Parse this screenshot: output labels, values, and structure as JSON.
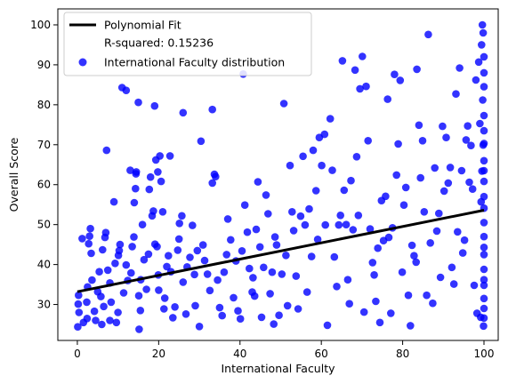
{
  "chart_data": {
    "type": "scatter",
    "xlabel": "International Faculty",
    "ylabel": "Overall Score",
    "xlim": [
      -4.8,
      103.5
    ],
    "ylim": [
      21,
      104
    ],
    "x_ticks": [
      0,
      20,
      40,
      60,
      80,
      100
    ],
    "y_ticks": [
      30,
      40,
      50,
      60,
      70,
      80,
      90,
      100
    ],
    "grid": false,
    "legend": {
      "placement": "top-left",
      "entries": [
        "Polynomial Fit",
        "R-squared: 0.15236",
        "International Faculty distribution"
      ]
    },
    "fit": {
      "name": "Polynomial Fit",
      "x": [
        0,
        100
      ],
      "y": [
        33.2,
        53.6
      ],
      "color": "#000000"
    },
    "series": [
      {
        "name": "International Faculty distribution",
        "color": "#0000ff",
        "points": [
          [
            0.1,
            24.4
          ],
          [
            0.4,
            28.0
          ],
          [
            0.2,
            30.1
          ],
          [
            0.3,
            32.3
          ],
          [
            2.4,
            26.5
          ],
          [
            1.5,
            25.5
          ],
          [
            1.2,
            46.5
          ],
          [
            2.8,
            45.2
          ],
          [
            3.0,
            47.1
          ],
          [
            3.2,
            49.0
          ],
          [
            3.4,
            42.8
          ],
          [
            3.6,
            36.1
          ],
          [
            2.5,
            34.4
          ],
          [
            2.3,
            30.6
          ],
          [
            4.2,
            28.3
          ],
          [
            4.5,
            26.0
          ],
          [
            5.0,
            33.2
          ],
          [
            5.4,
            38.2
          ],
          [
            5.8,
            32.0
          ],
          [
            6.0,
            25.0
          ],
          [
            6.5,
            29.5
          ],
          [
            6.2,
            43.7
          ],
          [
            6.8,
            46.8
          ],
          [
            7.0,
            48.0
          ],
          [
            7.2,
            68.6
          ],
          [
            7.5,
            38.6
          ],
          [
            8.0,
            35.4
          ],
          [
            8.3,
            30.6
          ],
          [
            8.0,
            26.0
          ],
          [
            9.0,
            55.7
          ],
          [
            9.3,
            40.3
          ],
          [
            9.6,
            25.5
          ],
          [
            10.0,
            28.0
          ],
          [
            10.5,
            45.0
          ],
          [
            10.3,
            43.5
          ],
          [
            10.1,
            42.3
          ],
          [
            11.0,
            84.3
          ],
          [
            11.4,
            32.9
          ],
          [
            12.0,
            39.9
          ],
          [
            12.4,
            36.0
          ],
          [
            12.0,
            83.6
          ],
          [
            13.0,
            63.6
          ],
          [
            13.2,
            37.9
          ],
          [
            13.5,
            44.5
          ],
          [
            13.9,
            46.9
          ],
          [
            14.0,
            55.5
          ],
          [
            14.3,
            59.0
          ],
          [
            14.4,
            62.7
          ],
          [
            14.5,
            63.2
          ],
          [
            15.0,
            80.6
          ],
          [
            15.1,
            32.2
          ],
          [
            15.6,
            36.2
          ],
          [
            15.5,
            28.5
          ],
          [
            15.2,
            23.8
          ],
          [
            16.0,
            50.0
          ],
          [
            16.4,
            41.2
          ],
          [
            17.0,
            33.8
          ],
          [
            17.5,
            42.6
          ],
          [
            17.7,
            58.8
          ],
          [
            18.0,
            61.9
          ],
          [
            18.4,
            52.2
          ],
          [
            18.7,
            53.4
          ],
          [
            19.0,
            79.7
          ],
          [
            19.3,
            66.2
          ],
          [
            19.8,
            63.2
          ],
          [
            19.1,
            45.1
          ],
          [
            19.6,
            44.5
          ],
          [
            19.9,
            37.4
          ],
          [
            20.0,
            33.6
          ],
          [
            20.3,
            67.2
          ],
          [
            20.6,
            60.8
          ],
          [
            21.0,
            53.2
          ],
          [
            21.5,
            31.6
          ],
          [
            21.3,
            28.9
          ],
          [
            22.0,
            39.5
          ],
          [
            22.4,
            42.2
          ],
          [
            22.8,
            67.2
          ],
          [
            23.0,
            38.2
          ],
          [
            23.5,
            26.7
          ],
          [
            24.0,
            29.4
          ],
          [
            24.7,
            43.6
          ],
          [
            25.0,
            46.4
          ],
          [
            25.1,
            50.3
          ],
          [
            25.7,
            52.2
          ],
          [
            26.0,
            78.0
          ],
          [
            26.0,
            35.6
          ],
          [
            26.7,
            27.6
          ],
          [
            27.0,
            39.4
          ],
          [
            27.7,
            41.8
          ],
          [
            28.3,
            49.8
          ],
          [
            28.8,
            37.5
          ],
          [
            29.0,
            29.7
          ],
          [
            29.5,
            43.5
          ],
          [
            30.0,
            24.5
          ],
          [
            30.4,
            70.9
          ],
          [
            30.9,
            44.9
          ],
          [
            31.3,
            41.0
          ],
          [
            32.0,
            37.6
          ],
          [
            32.6,
            33.5
          ],
          [
            33.2,
            60.4
          ],
          [
            33.7,
            62.6
          ],
          [
            33.2,
            78.8
          ],
          [
            34.0,
            62.0
          ],
          [
            34.5,
            36.1
          ],
          [
            35.0,
            29.2
          ],
          [
            35.6,
            27.2
          ],
          [
            36.1,
            38.1
          ],
          [
            36.7,
            42.5
          ],
          [
            37.0,
            51.4
          ],
          [
            37.7,
            46.2
          ],
          [
            38.4,
            31.7
          ],
          [
            39.0,
            40.9
          ],
          [
            39.5,
            28.4
          ],
          [
            40.1,
            26.4
          ],
          [
            40.5,
            43.4
          ],
          [
            40.8,
            87.7
          ],
          [
            41.2,
            54.9
          ],
          [
            41.8,
            48.1
          ],
          [
            42.3,
            39.0
          ],
          [
            43.0,
            33.1
          ],
          [
            43.2,
            36.7
          ],
          [
            43.6,
            32.1
          ],
          [
            44.0,
            48.8
          ],
          [
            44.4,
            60.7
          ],
          [
            44.9,
            44.4
          ],
          [
            45.3,
            26.8
          ],
          [
            45.8,
            39.3
          ],
          [
            46.4,
            57.4
          ],
          [
            46.9,
            52.7
          ],
          [
            47.4,
            32.7
          ],
          [
            47.9,
            38.1
          ],
          [
            48.3,
            25.1
          ],
          [
            48.6,
            46.9
          ],
          [
            49.0,
            44.9
          ],
          [
            49.6,
            27.3
          ],
          [
            50.3,
            37.6
          ],
          [
            50.8,
            80.3
          ],
          [
            51.3,
            42.3
          ],
          [
            51.7,
            29.7
          ],
          [
            52.3,
            64.8
          ],
          [
            52.8,
            53.2
          ],
          [
            53.2,
            48.5
          ],
          [
            53.8,
            37.1
          ],
          [
            54.3,
            28.9
          ],
          [
            54.9,
            52.1
          ],
          [
            55.5,
            67.1
          ],
          [
            56.0,
            49.9
          ],
          [
            56.5,
            33.1
          ],
          [
            57.0,
            53.9
          ],
          [
            57.6,
            42.0
          ],
          [
            58.0,
            68.6
          ],
          [
            58.7,
            58.5
          ],
          [
            59.1,
            46.3
          ],
          [
            59.5,
            71.8
          ],
          [
            60.1,
            64.8
          ],
          [
            60.8,
            72.6
          ],
          [
            61.0,
            49.9
          ],
          [
            61.5,
            24.8
          ],
          [
            62.2,
            76.5
          ],
          [
            62.7,
            63.6
          ],
          [
            63.2,
            41.9
          ],
          [
            63.8,
            34.5
          ],
          [
            64.3,
            49.9
          ],
          [
            64.7,
            52.3
          ],
          [
            65.2,
            91.0
          ],
          [
            65.6,
            58.6
          ],
          [
            66.1,
            50.0
          ],
          [
            66.5,
            36.2
          ],
          [
            66.9,
            30.2
          ],
          [
            67.3,
            61.0
          ],
          [
            67.8,
            48.7
          ],
          [
            68.3,
            88.7
          ],
          [
            68.7,
            67.0
          ],
          [
            69.1,
            52.3
          ],
          [
            69.5,
            84.0
          ],
          [
            70.1,
            92.1
          ],
          [
            70.5,
            28.1
          ],
          [
            71.0,
            84.6
          ],
          [
            71.5,
            71.0
          ],
          [
            72.0,
            48.9
          ],
          [
            72.6,
            40.5
          ],
          [
            73.0,
            37.4
          ],
          [
            73.4,
            30.8
          ],
          [
            73.9,
            44.1
          ],
          [
            74.4,
            25.5
          ],
          [
            74.8,
            56.0
          ],
          [
            75.3,
            46.0
          ],
          [
            75.8,
            57.1
          ],
          [
            76.3,
            81.4
          ],
          [
            76.6,
            46.8
          ],
          [
            77.1,
            27.8
          ],
          [
            77.5,
            49.2
          ],
          [
            78.0,
            87.6
          ],
          [
            78.5,
            62.4
          ],
          [
            78.9,
            70.2
          ],
          [
            79.4,
            86.1
          ],
          [
            79.9,
            38.1
          ],
          [
            80.3,
            54.9
          ],
          [
            80.8,
            59.3
          ],
          [
            81.4,
            32.3
          ],
          [
            81.9,
            24.7
          ],
          [
            82.3,
            44.8
          ],
          [
            82.8,
            42.2
          ],
          [
            83.3,
            40.6
          ],
          [
            83.5,
            88.9
          ],
          [
            84.0,
            74.9
          ],
          [
            84.4,
            61.7
          ],
          [
            84.9,
            71.0
          ],
          [
            85.3,
            53.2
          ],
          [
            85.9,
            32.3
          ],
          [
            86.3,
            97.6
          ],
          [
            86.8,
            45.4
          ],
          [
            87.4,
            30.3
          ],
          [
            87.9,
            64.2
          ],
          [
            88.4,
            48.4
          ],
          [
            88.9,
            52.8
          ],
          [
            89.3,
            36.8
          ],
          [
            89.8,
            74.6
          ],
          [
            90.2,
            58.4
          ],
          [
            90.7,
            71.8
          ],
          [
            91.2,
            60.4
          ],
          [
            91.7,
            64.3
          ],
          [
            92.1,
            39.3
          ],
          [
            92.6,
            35.1
          ],
          [
            93.1,
            82.7
          ],
          [
            93.5,
            48.2
          ],
          [
            94.0,
            89.2
          ],
          [
            94.5,
            63.5
          ],
          [
            94.8,
            42.9
          ],
          [
            95.2,
            46.1
          ],
          [
            95.6,
            71.2
          ],
          [
            96.0,
            74.7
          ],
          [
            96.4,
            60.6
          ],
          [
            96.8,
            69.8
          ],
          [
            97.2,
            58.9
          ],
          [
            97.6,
            34.8
          ],
          [
            98.0,
            86.2
          ],
          [
            98.3,
            27.8
          ],
          [
            98.7,
            90.7
          ],
          [
            99.0,
            75.3
          ],
          [
            99.2,
            26.8
          ],
          [
            99.4,
            95.0
          ],
          [
            99.6,
            100.0
          ],
          [
            99.8,
            98.0
          ],
          [
            100.0,
            92.0
          ],
          [
            100.0,
            88.0
          ],
          [
            100.0,
            84.5
          ],
          [
            100.0,
            77.3
          ],
          [
            100.0,
            73.5
          ],
          [
            100.0,
            70.3
          ],
          [
            100.0,
            66.0
          ],
          [
            100.0,
            63.5
          ],
          [
            100.0,
            60.8
          ],
          [
            100.0,
            57.0
          ],
          [
            100.0,
            54.1
          ],
          [
            100.0,
            50.5
          ],
          [
            100.0,
            47.0
          ],
          [
            100.0,
            44.3
          ],
          [
            100.0,
            42.5
          ],
          [
            100.0,
            38.8
          ],
          [
            100.0,
            36.2
          ],
          [
            100.0,
            34.8
          ],
          [
            100.0,
            31.5
          ],
          [
            100.0,
            29.0
          ],
          [
            100.0,
            26.6
          ],
          [
            99.9,
            24.6
          ],
          [
            99.7,
            81.2
          ],
          [
            99.8,
            69.9
          ],
          [
            99.5,
            63.4
          ],
          [
            99.3,
            55.7
          ]
        ]
      }
    ]
  }
}
